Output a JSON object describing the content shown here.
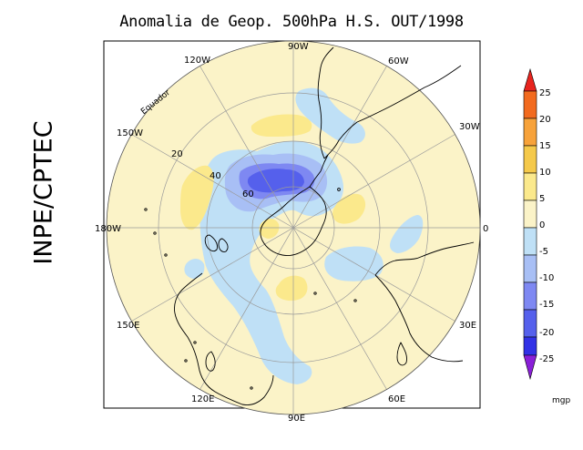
{
  "title": "Anomalia de Geop. 500hPa H.S. OUT/1998",
  "side_label": "INPE/CPTEC",
  "map": {
    "projection": "polar stereographic, South Pole",
    "equator_label": "Equador",
    "longitude_labels": [
      "90W",
      "60W",
      "30W",
      "0",
      "30E",
      "60E",
      "90E",
      "120E",
      "150E",
      "180W",
      "150W",
      "120W"
    ],
    "latitude_labels": [
      "20",
      "40",
      "60"
    ]
  },
  "colorbar": {
    "unit": "mgp",
    "levels": [
      "25",
      "20",
      "15",
      "10",
      "5",
      "0",
      "-5",
      "-10",
      "-15",
      "-20",
      "-25"
    ],
    "colors": {
      "gt25": "#e8241e",
      "20_25": "#f26a1e",
      "15_20": "#f7a23a",
      "10_15": "#f5c94a",
      "5_10": "#fbe98c",
      "0_5": "#fbf3c8",
      "m5_0": "#bfe0f6",
      "m10_m5": "#a8bff5",
      "m15_m10": "#7e88f2",
      "m20_m15": "#5560ec",
      "m25_m20": "#3131e6",
      "lt_m25": "#8a1fd8"
    }
  }
}
